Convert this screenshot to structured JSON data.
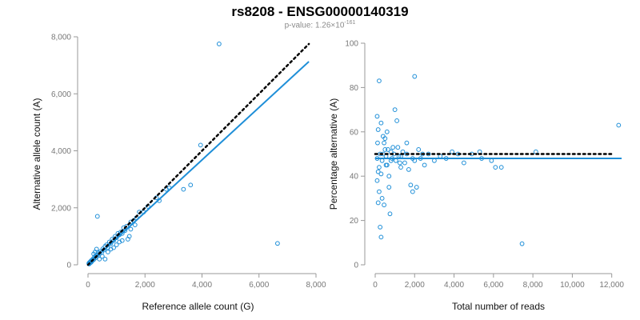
{
  "title": "rs8208 - ENSG00000140319",
  "subtitle": {
    "prefix": "p-value: 1.26×10",
    "exponent": "-161"
  },
  "colors": {
    "points": "#1f8fd8",
    "fit": "#1f8fd8",
    "reference": "#000000",
    "axis": "#999999"
  },
  "chart_data": [
    {
      "type": "scatter",
      "xlabel": "Reference allele count (G)",
      "ylabel": "Alternative allele count (A)",
      "xlim": [
        0,
        8000
      ],
      "ylim": [
        0,
        8000
      ],
      "xticks": [
        0,
        2000,
        4000,
        6000,
        8000
      ],
      "yticks": [
        0,
        2000,
        4000,
        6000,
        8000
      ],
      "xtick_labels": [
        "0",
        "2,000",
        "4,000",
        "6,000",
        "8,000"
      ],
      "ytick_labels": [
        "0",
        "2,000",
        "4,000",
        "6,000",
        "8,000"
      ],
      "grid": false,
      "points": [
        [
          4600,
          7750
        ],
        [
          6650,
          750
        ],
        [
          3950,
          4200
        ],
        [
          3600,
          2800
        ],
        [
          3350,
          2650
        ],
        [
          2850,
          2700
        ],
        [
          2750,
          2650
        ],
        [
          2500,
          2250
        ],
        [
          2400,
          2350
        ],
        [
          2100,
          2050
        ],
        [
          1950,
          1850
        ],
        [
          1800,
          1850
        ],
        [
          1700,
          1650
        ],
        [
          1600,
          1550
        ],
        [
          1500,
          1500
        ],
        [
          1450,
          1000
        ],
        [
          1400,
          900
        ],
        [
          1350,
          1350
        ],
        [
          1300,
          1200
        ],
        [
          1250,
          1300
        ],
        [
          1200,
          1100
        ],
        [
          1150,
          1150
        ],
        [
          1100,
          1050
        ],
        [
          1050,
          1100
        ],
        [
          1000,
          950
        ],
        [
          950,
          1000
        ],
        [
          900,
          850
        ],
        [
          850,
          900
        ],
        [
          800,
          750
        ],
        [
          750,
          800
        ],
        [
          700,
          600
        ],
        [
          650,
          700
        ],
        [
          600,
          650
        ],
        [
          560,
          520
        ],
        [
          520,
          560
        ],
        [
          480,
          430
        ],
        [
          440,
          470
        ],
        [
          400,
          380
        ],
        [
          360,
          420
        ],
        [
          330,
          1700
        ],
        [
          320,
          300
        ],
        [
          290,
          330
        ],
        [
          260,
          240
        ],
        [
          230,
          280
        ],
        [
          200,
          180
        ],
        [
          180,
          210
        ],
        [
          150,
          140
        ],
        [
          130,
          160
        ],
        [
          110,
          90
        ],
        [
          90,
          120
        ],
        [
          70,
          60
        ],
        [
          50,
          80
        ],
        [
          40,
          30
        ],
        [
          30,
          50
        ],
        [
          600,
          200
        ],
        [
          700,
          450
        ],
        [
          900,
          600
        ],
        [
          1100,
          800
        ],
        [
          500,
          300
        ],
        [
          400,
          200
        ],
        [
          1200,
          850
        ],
        [
          1000,
          700
        ],
        [
          800,
          550
        ],
        [
          300,
          550
        ],
        [
          250,
          450
        ],
        [
          200,
          380
        ],
        [
          1500,
          1250
        ],
        [
          1650,
          1400
        ]
      ],
      "lines": [
        {
          "kind": "fit",
          "style": "solid",
          "x": [
            0,
            7750
          ],
          "y": [
            0,
            7130
          ]
        },
        {
          "kind": "reference",
          "style": "dotted",
          "x": [
            0,
            7750
          ],
          "y": [
            0,
            7750
          ]
        }
      ]
    },
    {
      "type": "scatter",
      "xlabel": "Total number of reads",
      "ylabel": "Percentage alternative (A)",
      "xlim": [
        0,
        12500
      ],
      "ylim": [
        0,
        100
      ],
      "xticks": [
        0,
        2000,
        4000,
        6000,
        8000,
        10000,
        12000
      ],
      "yticks": [
        0,
        20,
        40,
        60,
        80,
        100
      ],
      "xtick_labels": [
        "0",
        "2,000",
        "4,000",
        "6,000",
        "8,000",
        "10,000",
        "12,000"
      ],
      "ytick_labels": [
        "0",
        "20",
        "40",
        "60",
        "80",
        "100"
      ],
      "grid": false,
      "points": [
        [
          200,
          83
        ],
        [
          2000,
          85
        ],
        [
          12350,
          63
        ],
        [
          7450,
          9.5
        ],
        [
          300,
          12.5
        ],
        [
          250,
          17
        ],
        [
          750,
          23
        ],
        [
          150,
          28
        ],
        [
          200,
          33
        ],
        [
          100,
          38
        ],
        [
          150,
          42
        ],
        [
          100,
          48
        ],
        [
          120,
          55
        ],
        [
          150,
          61
        ],
        [
          100,
          67
        ],
        [
          300,
          64
        ],
        [
          400,
          58
        ],
        [
          500,
          52
        ],
        [
          600,
          45
        ],
        [
          700,
          40
        ],
        [
          800,
          47
        ],
        [
          900,
          53
        ],
        [
          1000,
          70
        ],
        [
          1100,
          65
        ],
        [
          1200,
          49
        ],
        [
          1300,
          44
        ],
        [
          1400,
          51
        ],
        [
          1500,
          46
        ],
        [
          1600,
          55
        ],
        [
          1700,
          43
        ],
        [
          1800,
          36
        ],
        [
          1900,
          33
        ],
        [
          2000,
          47
        ],
        [
          2100,
          35
        ],
        [
          2200,
          52
        ],
        [
          2300,
          48
        ],
        [
          2500,
          45
        ],
        [
          2700,
          50
        ],
        [
          3000,
          47
        ],
        [
          3300,
          49
        ],
        [
          3600,
          48
        ],
        [
          3900,
          51
        ],
        [
          4200,
          50
        ],
        [
          4500,
          46
        ],
        [
          4900,
          50
        ],
        [
          5400,
          48
        ],
        [
          5300,
          51
        ],
        [
          5900,
          47
        ],
        [
          6100,
          44
        ],
        [
          6400,
          44
        ],
        [
          8150,
          51
        ],
        [
          250,
          50
        ],
        [
          350,
          47
        ],
        [
          450,
          55
        ],
        [
          550,
          49
        ],
        [
          650,
          52
        ],
        [
          850,
          48
        ],
        [
          950,
          50
        ],
        [
          1050,
          47
        ],
        [
          1150,
          53
        ],
        [
          1250,
          46
        ],
        [
          200,
          44
        ],
        [
          300,
          41
        ],
        [
          400,
          50
        ],
        [
          500,
          57
        ],
        [
          600,
          60
        ],
        [
          700,
          35
        ],
        [
          350,
          30
        ],
        [
          450,
          27
        ],
        [
          550,
          45
        ],
        [
          800,
          51
        ],
        [
          1300,
          49
        ],
        [
          1600,
          50
        ],
        [
          1900,
          48
        ],
        [
          2400,
          50
        ]
      ],
      "lines": [
        {
          "kind": "fit",
          "style": "solid",
          "x": [
            0,
            12500
          ],
          "y": [
            48,
            48
          ]
        },
        {
          "kind": "reference",
          "style": "dotted",
          "x": [
            0,
            12000
          ],
          "y": [
            50,
            50
          ]
        }
      ]
    }
  ]
}
